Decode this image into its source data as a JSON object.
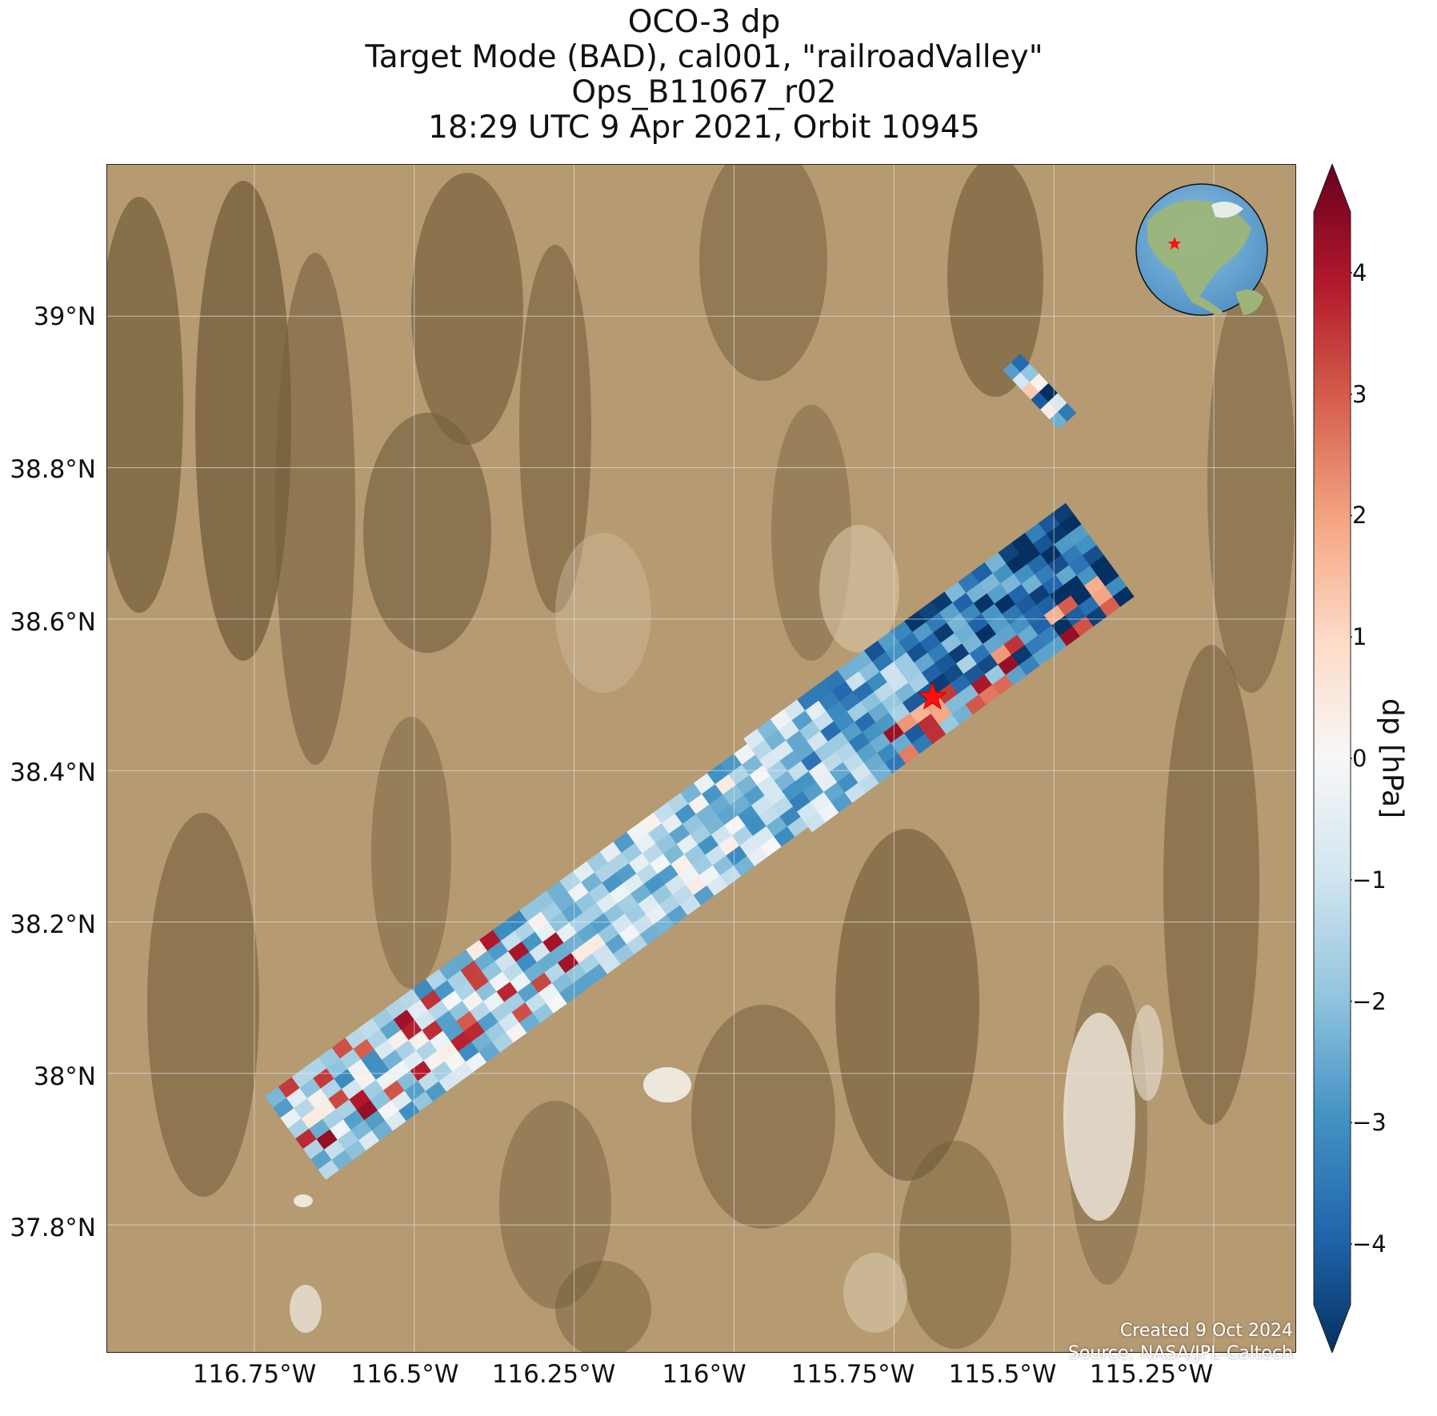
{
  "title": {
    "lines": [
      "OCO-3 dp",
      "Target Mode (BAD), cal001, \"railroadValley\"",
      "Ops_B11067_r02",
      "18:29 UTC 9 Apr 2021, Orbit 10945"
    ]
  },
  "map": {
    "lon_range": [
      -116.98,
      -115.12
    ],
    "lat_range": [
      37.63,
      39.2
    ],
    "lat_ticks": [
      {
        "value": 39.0,
        "label": "39°N"
      },
      {
        "value": 38.8,
        "label": "38.8°N"
      },
      {
        "value": 38.6,
        "label": "38.6°N"
      },
      {
        "value": 38.4,
        "label": "38.4°N"
      },
      {
        "value": 38.2,
        "label": "38.2°N"
      },
      {
        "value": 38.0,
        "label": "38°N"
      },
      {
        "value": 37.8,
        "label": "37.8°N"
      }
    ],
    "lon_ticks": [
      {
        "value": -116.75,
        "label": "116.75°W"
      },
      {
        "value": -116.5,
        "label": "116.5°W"
      },
      {
        "value": -116.25,
        "label": "116.25°W"
      },
      {
        "value": -116.0,
        "label": "116°W"
      },
      {
        "value": -115.75,
        "label": "115.75°W"
      },
      {
        "value": -115.5,
        "label": "115.5°W"
      },
      {
        "value": -115.25,
        "label": "115.25°W"
      }
    ],
    "target": {
      "name": "railroadValley",
      "lon": -115.69,
      "lat": 38.497
    },
    "colors": {
      "background": "#b59a72",
      "mountain": "#6e5a36",
      "playa": "#ebe3d6",
      "target_star": "#ff1010"
    }
  },
  "colorbar": {
    "label": "dp [hPa]",
    "vmin": -4.5,
    "vmax": 4.5,
    "ticks": [
      {
        "value": 4,
        "label": "4"
      },
      {
        "value": 3,
        "label": "3"
      },
      {
        "value": 2,
        "label": "2"
      },
      {
        "value": 1,
        "label": "1"
      },
      {
        "value": 0,
        "label": "0"
      },
      {
        "value": -1,
        "label": "−1"
      },
      {
        "value": -2,
        "label": "−2"
      },
      {
        "value": -3,
        "label": "−3"
      },
      {
        "value": -4,
        "label": "−4"
      }
    ],
    "colormap": [
      "#053061",
      "#2166ac",
      "#4393c3",
      "#92c5de",
      "#d1e5f0",
      "#f7f7f7",
      "#fddbc7",
      "#f4a582",
      "#d6604d",
      "#b2182b",
      "#67001f"
    ]
  },
  "credit": {
    "created": "Created 9 Oct 2024",
    "source": "Source: NASA/JPL-Caltech"
  }
}
